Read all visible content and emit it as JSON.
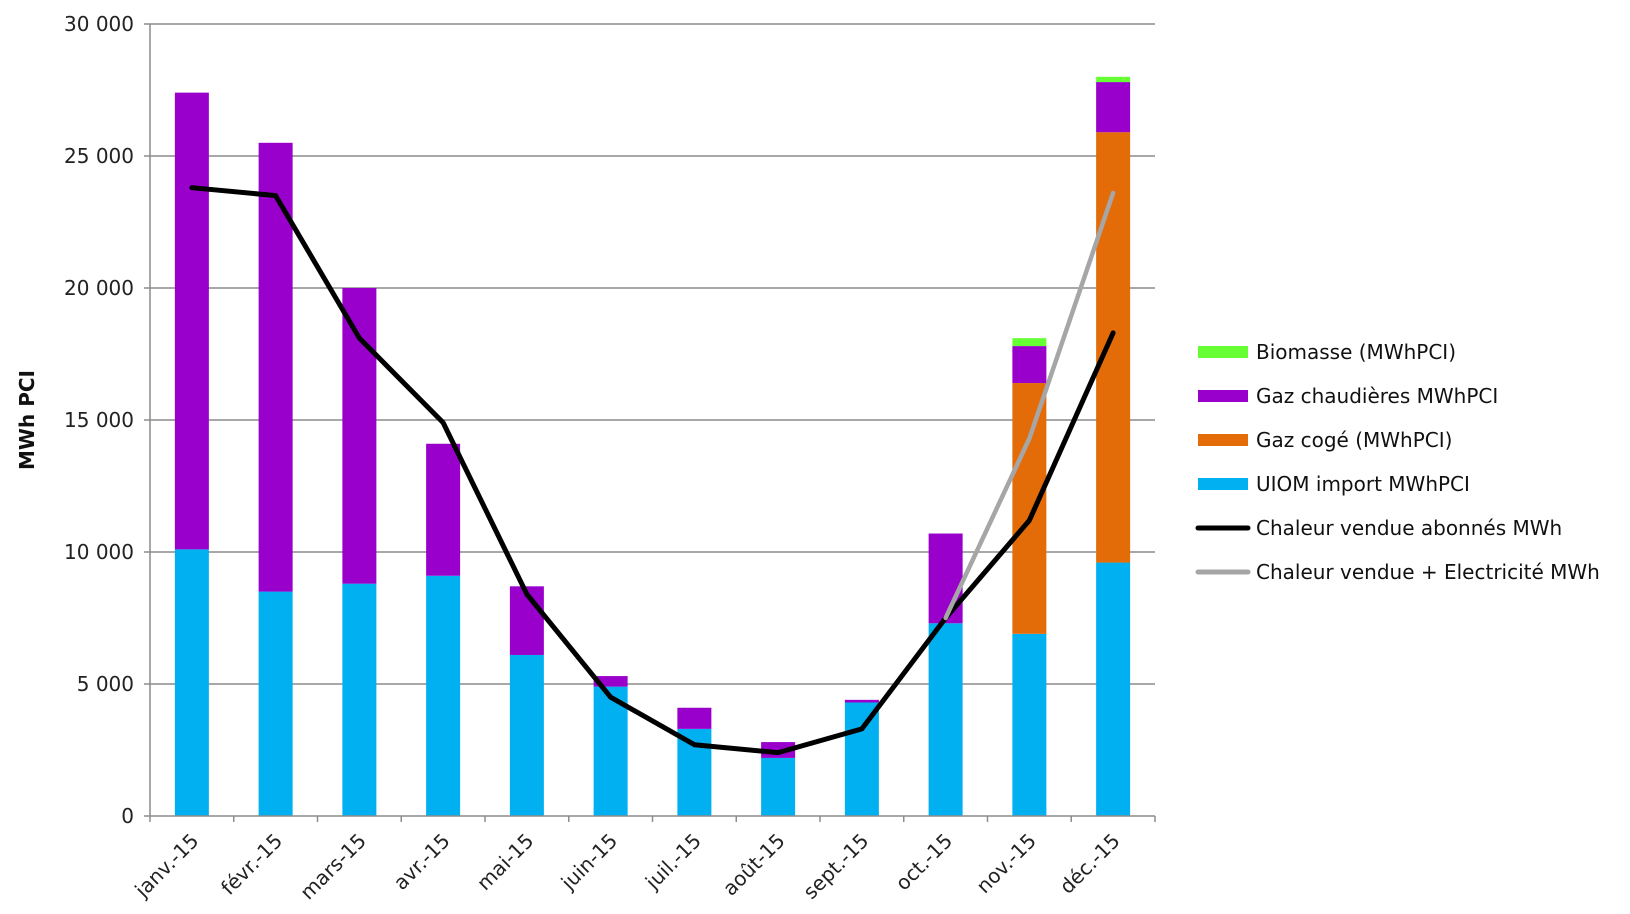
{
  "chart_data": {
    "type": "bar",
    "stacked": true,
    "categories": [
      "janv.-15",
      "févr.-15",
      "mars-15",
      "avr.-15",
      "mai-15",
      "juin-15",
      "juil.-15",
      "août-15",
      "sept.-15",
      "oct.-15",
      "nov.-15",
      "déc.-15"
    ],
    "ylabel": "MWh PCI",
    "ylim": [
      0,
      30000
    ],
    "yticks": [
      0,
      5000,
      10000,
      15000,
      20000,
      25000,
      30000
    ],
    "ytick_labels": [
      "0",
      "5 000",
      "10 000",
      "15 000",
      "20 000",
      "25 000",
      "30 000"
    ],
    "grid": true,
    "legend_position": "right",
    "series": [
      {
        "name": "UIOM import MWhPCI",
        "kind": "bar",
        "color": "#00b0f0",
        "values": [
          10100,
          8500,
          8800,
          9100,
          6100,
          4900,
          3300,
          2200,
          4300,
          7300,
          6900,
          9600
        ]
      },
      {
        "name": "Gaz cogé (MWhPCI)",
        "kind": "bar",
        "color": "#e36c09",
        "values": [
          0,
          0,
          0,
          0,
          0,
          0,
          0,
          0,
          0,
          0,
          9500,
          16300
        ]
      },
      {
        "name": "Gaz chaudières MWhPCI",
        "kind": "bar",
        "color": "#9900cc",
        "values": [
          17300,
          17000,
          11200,
          5000,
          2600,
          400,
          800,
          600,
          100,
          3400,
          1400,
          1900
        ]
      },
      {
        "name": "Biomasse (MWhPCI)",
        "kind": "bar",
        "color": "#66ff33",
        "values": [
          0,
          0,
          0,
          0,
          0,
          0,
          0,
          0,
          0,
          0,
          300,
          200
        ]
      },
      {
        "name": "Chaleur vendue abonnés MWh",
        "kind": "line",
        "color": "#000000",
        "values": [
          23800,
          23500,
          18100,
          14900,
          8400,
          4500,
          2700,
          2400,
          3300,
          7500,
          11200,
          18300
        ]
      },
      {
        "name": "Chaleur vendue + Electricité  MWh",
        "kind": "line",
        "color": "#a6a6a6",
        "values": [
          null,
          null,
          null,
          null,
          null,
          null,
          null,
          null,
          null,
          7500,
          14300,
          23600
        ]
      }
    ],
    "legend": [
      {
        "label": "Biomasse (MWhPCI)",
        "color": "#66ff33"
      },
      {
        "label": "Gaz chaudières MWhPCI",
        "color": "#9900cc"
      },
      {
        "label": "Gaz cogé (MWhPCI)",
        "color": "#e36c09"
      },
      {
        "label": "UIOM import MWhPCI",
        "color": "#00b0f0"
      },
      {
        "label": "Chaleur vendue abonnés MWh",
        "color": "#000000"
      },
      {
        "label": "Chaleur vendue + Electricité  MWh",
        "color": "#a6a6a6"
      }
    ]
  }
}
